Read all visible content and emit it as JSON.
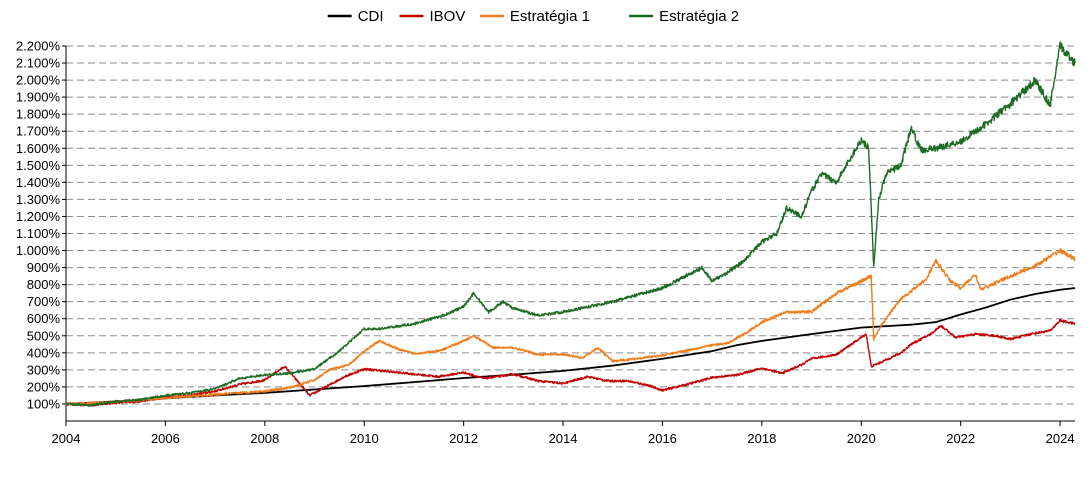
{
  "chart_data": {
    "type": "line",
    "title": "",
    "xlabel": "",
    "ylabel": "",
    "xlim": [
      2004,
      2024.3
    ],
    "ylim": [
      0,
      2200
    ],
    "grid": true,
    "legend_placement": "top",
    "x_ticks": [
      "2004",
      "2006",
      "2008",
      "2010",
      "2012",
      "2014",
      "2016",
      "2018",
      "2020",
      "2022",
      "2024"
    ],
    "y_ticks": [
      "100%",
      "200%",
      "300%",
      "400%",
      "500%",
      "600%",
      "700%",
      "800%",
      "900%",
      "1.000%",
      "1.100%",
      "1.200%",
      "1.300%",
      "1.400%",
      "1.500%",
      "1.600%",
      "1.700%",
      "1.800%",
      "1.900%",
      "2.000%",
      "2.100%",
      "2.200%"
    ],
    "series": [
      {
        "name": "CDI",
        "color": "#000000",
        "points": [
          [
            2004.0,
            100
          ],
          [
            2005.0,
            115
          ],
          [
            2006.0,
            133
          ],
          [
            2007.0,
            150
          ],
          [
            2008.0,
            165
          ],
          [
            2009.0,
            185
          ],
          [
            2010.0,
            205
          ],
          [
            2011.0,
            228
          ],
          [
            2012.0,
            252
          ],
          [
            2013.0,
            272
          ],
          [
            2014.0,
            294
          ],
          [
            2015.0,
            325
          ],
          [
            2016.0,
            365
          ],
          [
            2017.0,
            410
          ],
          [
            2017.5,
            445
          ],
          [
            2018.0,
            470
          ],
          [
            2019.0,
            510
          ],
          [
            2020.0,
            548
          ],
          [
            2021.0,
            565
          ],
          [
            2021.5,
            580
          ],
          [
            2022.0,
            625
          ],
          [
            2022.5,
            665
          ],
          [
            2023.0,
            712
          ],
          [
            2023.5,
            745
          ],
          [
            2024.0,
            770
          ],
          [
            2024.3,
            780
          ]
        ]
      },
      {
        "name": "IBOV",
        "color": "#c00000",
        "points": [
          [
            2004.0,
            100
          ],
          [
            2004.5,
            92
          ],
          [
            2005.0,
            108
          ],
          [
            2005.5,
            115
          ],
          [
            2006.0,
            140
          ],
          [
            2006.5,
            150
          ],
          [
            2007.0,
            175
          ],
          [
            2007.5,
            215
          ],
          [
            2008.0,
            240
          ],
          [
            2008.4,
            320
          ],
          [
            2008.7,
            220
          ],
          [
            2008.9,
            150
          ],
          [
            2009.2,
            195
          ],
          [
            2009.6,
            260
          ],
          [
            2010.0,
            305
          ],
          [
            2010.5,
            290
          ],
          [
            2011.0,
            275
          ],
          [
            2011.5,
            260
          ],
          [
            2012.0,
            285
          ],
          [
            2012.4,
            250
          ],
          [
            2012.8,
            265
          ],
          [
            2013.0,
            275
          ],
          [
            2013.5,
            235
          ],
          [
            2014.0,
            220
          ],
          [
            2014.5,
            260
          ],
          [
            2014.9,
            235
          ],
          [
            2015.3,
            235
          ],
          [
            2015.7,
            210
          ],
          [
            2016.0,
            180
          ],
          [
            2016.5,
            215
          ],
          [
            2017.0,
            255
          ],
          [
            2017.5,
            270
          ],
          [
            2018.0,
            310
          ],
          [
            2018.4,
            280
          ],
          [
            2018.8,
            330
          ],
          [
            2019.0,
            365
          ],
          [
            2019.5,
            390
          ],
          [
            2019.9,
            470
          ],
          [
            2020.1,
            510
          ],
          [
            2020.2,
            320
          ],
          [
            2020.4,
            345
          ],
          [
            2020.8,
            400
          ],
          [
            2021.0,
            450
          ],
          [
            2021.4,
            510
          ],
          [
            2021.6,
            560
          ],
          [
            2021.9,
            490
          ],
          [
            2022.3,
            510
          ],
          [
            2022.7,
            500
          ],
          [
            2023.0,
            480
          ],
          [
            2023.4,
            510
          ],
          [
            2023.8,
            530
          ],
          [
            2024.0,
            590
          ],
          [
            2024.3,
            570
          ]
        ]
      },
      {
        "name": "Estratégia 1",
        "color": "#f07c1a",
        "points": [
          [
            2004.0,
            100
          ],
          [
            2005.0,
            112
          ],
          [
            2006.0,
            135
          ],
          [
            2007.0,
            155
          ],
          [
            2008.0,
            175
          ],
          [
            2008.5,
            195
          ],
          [
            2009.0,
            240
          ],
          [
            2009.3,
            300
          ],
          [
            2009.7,
            330
          ],
          [
            2010.0,
            410
          ],
          [
            2010.3,
            470
          ],
          [
            2010.7,
            420
          ],
          [
            2011.0,
            395
          ],
          [
            2011.5,
            410
          ],
          [
            2012.0,
            470
          ],
          [
            2012.2,
            500
          ],
          [
            2012.6,
            430
          ],
          [
            2013.0,
            430
          ],
          [
            2013.5,
            390
          ],
          [
            2014.0,
            390
          ],
          [
            2014.4,
            370
          ],
          [
            2014.7,
            430
          ],
          [
            2015.0,
            350
          ],
          [
            2016.0,
            385
          ],
          [
            2017.0,
            445
          ],
          [
            2017.3,
            455
          ],
          [
            2017.7,
            520
          ],
          [
            2018.0,
            580
          ],
          [
            2018.5,
            640
          ],
          [
            2019.0,
            640
          ],
          [
            2019.5,
            750
          ],
          [
            2020.0,
            820
          ],
          [
            2020.2,
            850
          ],
          [
            2020.25,
            480
          ],
          [
            2020.4,
            560
          ],
          [
            2020.8,
            720
          ],
          [
            2021.0,
            760
          ],
          [
            2021.3,
            830
          ],
          [
            2021.5,
            940
          ],
          [
            2021.8,
            820
          ],
          [
            2022.0,
            780
          ],
          [
            2022.3,
            860
          ],
          [
            2022.4,
            770
          ],
          [
            2023.0,
            850
          ],
          [
            2023.5,
            910
          ],
          [
            2024.0,
            1000
          ],
          [
            2024.3,
            950
          ]
        ]
      },
      {
        "name": "Estratégia 2",
        "color": "#1e6b24",
        "points": [
          [
            2004.0,
            100
          ],
          [
            2004.5,
            92
          ],
          [
            2005.0,
            115
          ],
          [
            2005.5,
            125
          ],
          [
            2006.0,
            150
          ],
          [
            2006.5,
            165
          ],
          [
            2007.0,
            190
          ],
          [
            2007.5,
            250
          ],
          [
            2008.0,
            270
          ],
          [
            2008.5,
            280
          ],
          [
            2009.0,
            305
          ],
          [
            2009.5,
            410
          ],
          [
            2010.0,
            540
          ],
          [
            2010.3,
            540
          ],
          [
            2011.0,
            570
          ],
          [
            2011.6,
            620
          ],
          [
            2012.0,
            670
          ],
          [
            2012.2,
            750
          ],
          [
            2012.5,
            640
          ],
          [
            2012.8,
            700
          ],
          [
            2013.0,
            660
          ],
          [
            2013.5,
            620
          ],
          [
            2014.0,
            640
          ],
          [
            2015.0,
            700
          ],
          [
            2016.0,
            780
          ],
          [
            2016.8,
            900
          ],
          [
            2017.0,
            820
          ],
          [
            2017.3,
            870
          ],
          [
            2017.6,
            930
          ],
          [
            2018.0,
            1050
          ],
          [
            2018.3,
            1100
          ],
          [
            2018.5,
            1250
          ],
          [
            2018.8,
            1200
          ],
          [
            2019.0,
            1350
          ],
          [
            2019.2,
            1450
          ],
          [
            2019.5,
            1400
          ],
          [
            2019.8,
            1550
          ],
          [
            2020.0,
            1650
          ],
          [
            2020.15,
            1600
          ],
          [
            2020.25,
            900
          ],
          [
            2020.35,
            1300
          ],
          [
            2020.5,
            1450
          ],
          [
            2020.8,
            1500
          ],
          [
            2021.0,
            1720
          ],
          [
            2021.2,
            1590
          ],
          [
            2021.5,
            1600
          ],
          [
            2022.0,
            1640
          ],
          [
            2022.5,
            1740
          ],
          [
            2023.0,
            1860
          ],
          [
            2023.5,
            2000
          ],
          [
            2023.8,
            1850
          ],
          [
            2024.0,
            2200
          ],
          [
            2024.3,
            2100
          ]
        ]
      }
    ]
  }
}
